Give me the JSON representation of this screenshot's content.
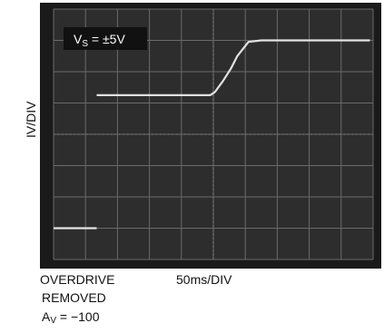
{
  "chart_data": {
    "type": "line",
    "instrument": "oscilloscope",
    "ylabel": "IV/DIV",
    "xlabel": "50ms/DIV",
    "annotation": {
      "text": "V",
      "subscript": "S",
      "rest": " = ±5V"
    },
    "caption_lines": [
      "OVERDRIVE",
      "REMOVED"
    ],
    "gain": {
      "text": "A",
      "subscript": "V",
      "rest": " = −100"
    },
    "grid": true,
    "divisions": {
      "x": 10,
      "y": 8
    },
    "xlim": [
      0,
      10
    ],
    "ylim": [
      -4,
      4
    ],
    "series": [
      {
        "x": [
          0.0,
          1.35
        ],
        "y": [
          -3.0,
          -3.0
        ]
      },
      {
        "x": [
          1.35,
          1.4,
          4.9,
          5.05,
          5.3,
          5.55,
          5.75,
          6.1,
          6.5,
          9.9
        ],
        "y": [
          1.25,
          1.25,
          1.25,
          1.35,
          1.7,
          2.1,
          2.5,
          2.95,
          3.0,
          3.0
        ]
      }
    ],
    "colors": {
      "screen": "#2d2d2d",
      "grid": "#6a6a6a",
      "trace": "#f0f0f0",
      "label_bg": "#111111"
    }
  }
}
